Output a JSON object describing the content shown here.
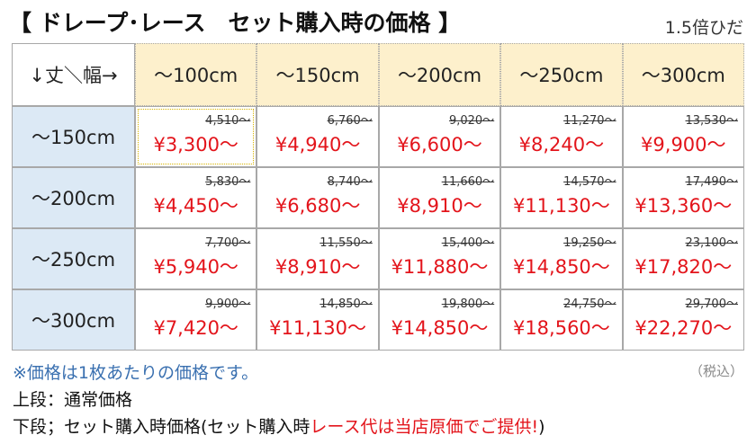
{
  "header": {
    "title": "【 ドレープ･レース　セット購入時の価格 】",
    "note": "1.5倍ひだ"
  },
  "table": {
    "corner": "↓丈＼幅→",
    "columns": [
      "～100cm",
      "～150cm",
      "～200cm",
      "～250cm",
      "～300cm"
    ],
    "rows": [
      {
        "label": "～150cm",
        "cells": [
          {
            "regular": "4,510～",
            "set": "¥3,300～"
          },
          {
            "regular": "6,760～",
            "set": "¥4,940～"
          },
          {
            "regular": "9,020～",
            "set": "¥6,600～"
          },
          {
            "regular": "11,270～",
            "set": "¥8,240～"
          },
          {
            "regular": "13,530～",
            "set": "¥9,900～"
          }
        ]
      },
      {
        "label": "～200cm",
        "cells": [
          {
            "regular": "5,830～",
            "set": "¥4,450～"
          },
          {
            "regular": "8,740～",
            "set": "¥6,680～"
          },
          {
            "regular": "11,660～",
            "set": "¥8,910～"
          },
          {
            "regular": "14,570～",
            "set": "¥11,130～"
          },
          {
            "regular": "17,490～",
            "set": "¥13,360～"
          }
        ]
      },
      {
        "label": "～250cm",
        "cells": [
          {
            "regular": "7,700～",
            "set": "¥5,940～"
          },
          {
            "regular": "11,550～",
            "set": "¥8,910～"
          },
          {
            "regular": "15,400～",
            "set": "¥11,880～"
          },
          {
            "regular": "19,250～",
            "set": "¥14,850～"
          },
          {
            "regular": "23,100～",
            "set": "¥17,820～"
          }
        ]
      },
      {
        "label": "～300cm",
        "cells": [
          {
            "regular": "9,900～",
            "set": "¥7,420～"
          },
          {
            "regular": "14,850～",
            "set": "¥11,130～"
          },
          {
            "regular": "19,800～",
            "set": "¥14,850～"
          },
          {
            "regular": "24,750～",
            "set": "¥18,560～"
          },
          {
            "regular": "29,700～",
            "set": "¥22,270～"
          }
        ]
      }
    ]
  },
  "notes": {
    "line1": "※価格は1枚あたりの価格です。",
    "tax": "（税込）",
    "line2": "上段：通常価格",
    "line3": [
      "下段；セット購入時価格(セット購入時",
      "レース代は当店原価でご提供!",
      ")"
    ]
  }
}
